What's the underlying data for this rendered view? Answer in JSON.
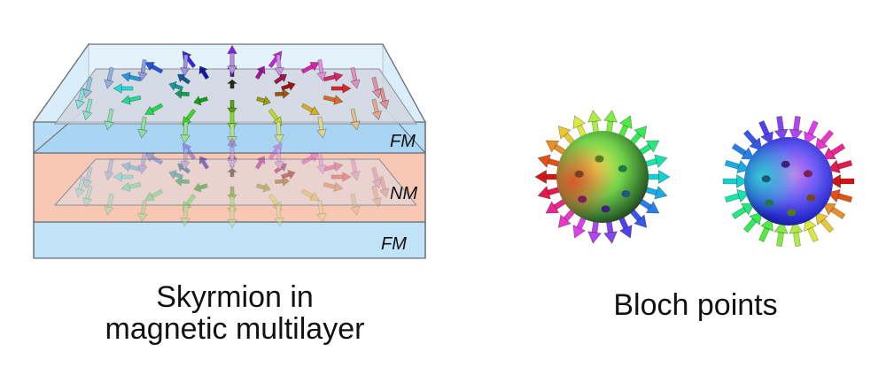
{
  "multilayer": {
    "caption_line1": "Skyrmion in",
    "caption_line2": "magnetic multilayer",
    "layers": {
      "top": "FM",
      "middle": "NM",
      "bottom": "FM"
    },
    "colors": {
      "fm": "#bfe0f7",
      "nm": "#f9c9b6",
      "frame": "#6a6f78",
      "plane": "#cfd3dc"
    }
  },
  "bloch_points": {
    "caption": "Bloch points",
    "colors": {
      "sphere_left": [
        "#e03a2a",
        "#2a9a3a",
        "#f5e83a",
        "#2a2a2a"
      ],
      "sphere_right": [
        "#1a2ad0",
        "#ff3aa0",
        "#3aa0e0",
        "#2a2a2a"
      ]
    }
  }
}
